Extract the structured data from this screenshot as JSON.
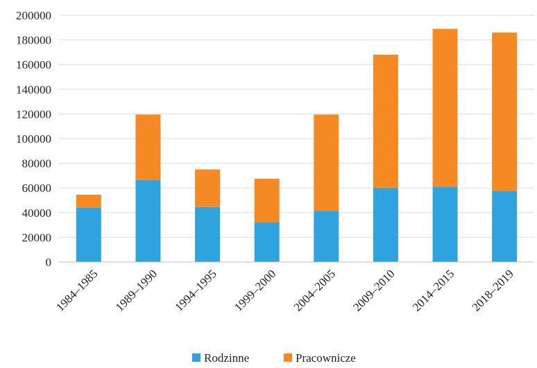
{
  "chart_data": {
    "type": "bar",
    "stacked": true,
    "categories": [
      "1984–1985",
      "1989–1990",
      "1994–1995",
      "1999–2000",
      "2004–2005",
      "2009–2010",
      "2014–2015",
      "2018–2019"
    ],
    "series": [
      {
        "name": "Rodzinne",
        "color": "#2ea3dd",
        "values": [
          44000,
          66500,
          44500,
          32000,
          41500,
          60000,
          61000,
          57500
        ]
      },
      {
        "name": "Pracownicze",
        "color": "#f58a25",
        "values": [
          10500,
          53000,
          30500,
          35500,
          78000,
          108000,
          128000,
          128500
        ]
      }
    ],
    "ylim": [
      0,
      200000
    ],
    "yticks": [
      0,
      20000,
      40000,
      60000,
      80000,
      100000,
      120000,
      140000,
      160000,
      180000,
      200000
    ],
    "grid": true,
    "legend_position": "bottom"
  }
}
